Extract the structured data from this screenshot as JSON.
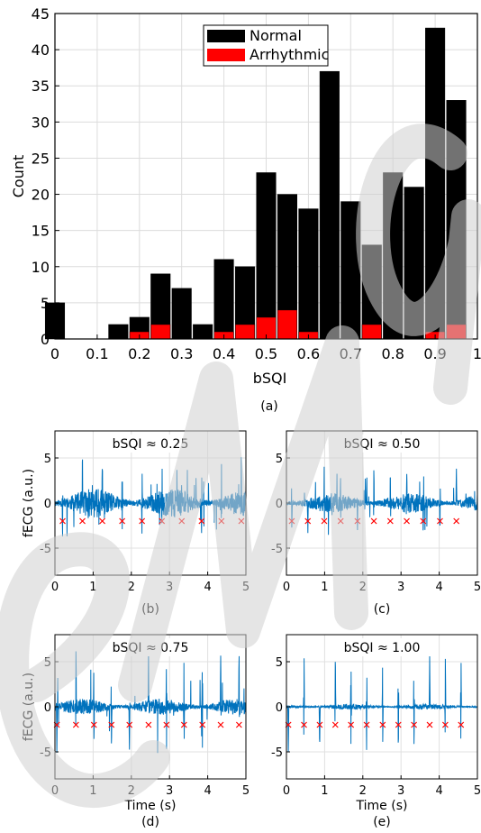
{
  "chart_data": [
    {
      "type": "bar",
      "panel": "(a)",
      "caption": "(a)",
      "xlabel": "bSQI",
      "ylabel": "Count",
      "xlim": [
        0,
        1
      ],
      "ylim": [
        0,
        45
      ],
      "xticks": [
        "0",
        "0.1",
        "0.2",
        "0.3",
        "0.4",
        "0.5",
        "0.6",
        "0.7",
        "0.8",
        "0.9",
        "1"
      ],
      "yticks": [
        "0",
        "5",
        "10",
        "15",
        "20",
        "25",
        "30",
        "35",
        "40",
        "45"
      ],
      "grid": true,
      "legend_position": "top-center",
      "bin_centers": [
        0.0,
        0.05,
        0.1,
        0.15,
        0.2,
        0.25,
        0.3,
        0.35,
        0.4,
        0.45,
        0.5,
        0.55,
        0.6,
        0.65,
        0.7,
        0.75,
        0.8,
        0.85,
        0.9,
        0.95
      ],
      "series": [
        {
          "name": "Normal",
          "color": "#000000",
          "values": [
            5,
            0,
            0,
            2,
            3,
            9,
            7,
            2,
            11,
            10,
            23,
            20,
            18,
            37,
            19,
            13,
            23,
            21,
            43,
            33
          ]
        },
        {
          "name": "Arrhythmic",
          "color": "#ff0000",
          "values": [
            0,
            0,
            0,
            0,
            1,
            2,
            0,
            0,
            1,
            2,
            3,
            4,
            1,
            0,
            0,
            2,
            0,
            0,
            1,
            2
          ]
        }
      ]
    },
    {
      "type": "line",
      "panel": "(b)",
      "title": "bSQI ≈ 0.25",
      "caption": "(b)",
      "ylabel": "fECG (a.u.)",
      "xlabel": "",
      "xlim": [
        0,
        5
      ],
      "ylim": [
        -8,
        8
      ],
      "xticks": [
        "0",
        "1",
        "2",
        "3",
        "4",
        "5"
      ],
      "yticks": [
        "-5",
        "0",
        "5"
      ],
      "grid": true,
      "series_color": "#0072bd",
      "marker_color": "#ff0000",
      "marker_y": -2,
      "marker_x": [
        0.2,
        0.72,
        1.24,
        1.76,
        2.28,
        2.8,
        3.32,
        3.84,
        4.36,
        4.88
      ]
    },
    {
      "type": "line",
      "panel": "(c)",
      "title": "bSQI ≈ 0.50",
      "caption": "(c)",
      "ylabel": "",
      "xlabel": "",
      "xlim": [
        0,
        5
      ],
      "ylim": [
        -8,
        8
      ],
      "xticks": [
        "0",
        "1",
        "2",
        "3",
        "4",
        "5"
      ],
      "yticks": [
        "-5",
        "0",
        "5"
      ],
      "grid": true,
      "series_color": "#0072bd",
      "marker_color": "#ff0000",
      "marker_y": -2,
      "marker_x": [
        0.14,
        0.56,
        0.99,
        1.42,
        1.86,
        2.29,
        2.72,
        3.15,
        3.58,
        4.02,
        4.45
      ]
    },
    {
      "type": "line",
      "panel": "(d)",
      "title": "bSQI ≈ 0.75",
      "caption": "(d)",
      "ylabel": "fECG (a.u.)",
      "xlabel": "Time (s)",
      "xlim": [
        0,
        5
      ],
      "ylim": [
        -8,
        8
      ],
      "xticks": [
        "0",
        "1",
        "2",
        "3",
        "4",
        "5"
      ],
      "yticks": [
        "-5",
        "0",
        "5"
      ],
      "grid": true,
      "series_color": "#0072bd",
      "marker_color": "#ff0000",
      "marker_y": -2,
      "marker_x": [
        0.05,
        0.55,
        1.02,
        1.48,
        1.95,
        2.45,
        2.92,
        3.38,
        3.86,
        4.34,
        4.82
      ]
    },
    {
      "type": "line",
      "panel": "(e)",
      "title": "bSQI ≈ 1.00",
      "caption": "(e)",
      "ylabel": "",
      "xlabel": "Time (s)",
      "xlim": [
        0,
        5
      ],
      "ylim": [
        -8,
        8
      ],
      "xticks": [
        "0",
        "1",
        "2",
        "3",
        "4",
        "5"
      ],
      "yticks": [
        "-5",
        "0",
        "5"
      ],
      "grid": true,
      "series_color": "#0072bd",
      "marker_color": "#ff0000",
      "marker_y": -2,
      "marker_x": [
        0.05,
        0.46,
        0.87,
        1.28,
        1.69,
        2.1,
        2.52,
        2.93,
        3.34,
        3.75,
        4.16,
        4.57
      ]
    }
  ],
  "watermark": {
    "text": "eMa",
    "color": "#cfcfcf"
  }
}
